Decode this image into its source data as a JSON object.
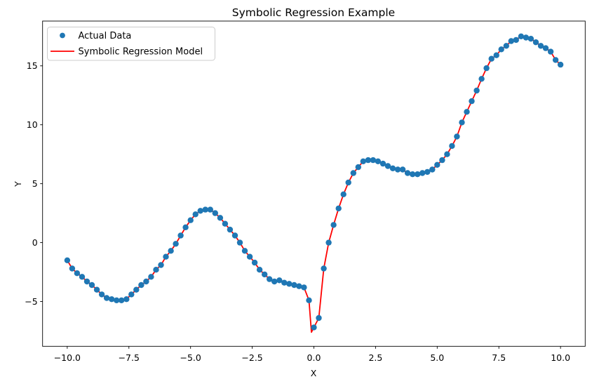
{
  "figure": {
    "title": "Symbolic Regression Example",
    "xlabel": "X",
    "ylabel": "Y",
    "background": "#ffffff"
  },
  "colors": {
    "scatter": "#1f77b4",
    "model_line": "#ff0000",
    "spine": "#000000",
    "text": "#000000",
    "legend_border": "#cccccc"
  },
  "axes": {
    "xlim": [
      -11,
      11
    ],
    "ylim": [
      -8.8,
      18.8
    ],
    "xticks": [
      -10,
      -7.5,
      -5,
      -2.5,
      0,
      2.5,
      5,
      7.5,
      10
    ],
    "xtick_labels": [
      "−10.0",
      "−7.5",
      "−5.0",
      "−2.5",
      "0.0",
      "2.5",
      "5.0",
      "7.5",
      "10.0"
    ],
    "yticks": [
      -5,
      0,
      5,
      10,
      15
    ],
    "ytick_labels": [
      "−5",
      "0",
      "5",
      "10",
      "15"
    ],
    "grid": false
  },
  "legend": {
    "position": "upper left",
    "items": [
      {
        "label": "Actual Data",
        "handle": "dot",
        "color": "#1f77b4"
      },
      {
        "label": "Symbolic Regression Model",
        "handle": "line",
        "color": "#ff0000"
      }
    ]
  },
  "chart_data": {
    "type": "scatter",
    "title": "Symbolic Regression Example",
    "xlabel": "X",
    "ylabel": "Y",
    "xlim": [
      -11,
      11
    ],
    "ylim": [
      -8.8,
      18.8
    ],
    "grid": false,
    "legend_position": "upper left",
    "x": [
      -10,
      -9.8,
      -9.6,
      -9.4,
      -9.2,
      -9,
      -8.8,
      -8.6,
      -8.4,
      -8.2,
      -8,
      -7.8,
      -7.6,
      -7.4,
      -7.2,
      -7,
      -6.8,
      -6.6,
      -6.4,
      -6.2,
      -6,
      -5.8,
      -5.6,
      -5.4,
      -5.2,
      -5,
      -4.8,
      -4.6,
      -4.4,
      -4.2,
      -4,
      -3.8,
      -3.6,
      -3.4,
      -3.2,
      -3,
      -2.8,
      -2.6,
      -2.4,
      -2.2,
      -2,
      -1.8,
      -1.6,
      -1.4,
      -1.2,
      -1,
      -0.8,
      -0.6,
      -0.4,
      -0.2,
      0,
      0.2,
      0.4,
      0.6,
      0.8,
      1,
      1.2,
      1.4,
      1.6,
      1.8,
      2,
      2.2,
      2.4,
      2.6,
      2.8,
      3,
      3.2,
      3.4,
      3.6,
      3.8,
      4,
      4.2,
      4.4,
      4.6,
      4.8,
      5,
      5.2,
      5.4,
      5.6,
      5.8,
      6,
      6.2,
      6.4,
      6.6,
      6.8,
      7,
      7.2,
      7.4,
      7.6,
      7.8,
      8,
      8.2,
      8.4,
      8.6,
      8.8,
      9,
      9.2,
      9.4,
      9.6,
      9.8,
      10
    ],
    "series": [
      {
        "name": "Actual Data",
        "type": "scatter",
        "color": "#1f77b4",
        "y": [
          -1.5,
          -2.2,
          -2.6,
          -2.9,
          -3.3,
          -3.6,
          -4.0,
          -4.4,
          -4.7,
          -4.8,
          -4.9,
          -4.9,
          -4.8,
          -4.4,
          -4.0,
          -3.6,
          -3.3,
          -2.9,
          -2.3,
          -1.9,
          -1.2,
          -0.7,
          -0.1,
          0.6,
          1.3,
          1.9,
          2.4,
          2.7,
          2.8,
          2.8,
          2.5,
          2.1,
          1.6,
          1.1,
          0.6,
          0.0,
          -0.7,
          -1.2,
          -1.7,
          -2.3,
          -2.7,
          -3.1,
          -3.3,
          -3.2,
          -3.4,
          -3.5,
          -3.6,
          -3.7,
          -3.8,
          -4.9,
          -7.2,
          -6.4,
          -2.2,
          0.0,
          1.5,
          2.9,
          4.1,
          5.1,
          5.9,
          6.4,
          6.9,
          7.0,
          7.0,
          6.9,
          6.7,
          6.5,
          6.3,
          6.2,
          6.2,
          5.9,
          5.8,
          5.8,
          5.9,
          6.0,
          6.2,
          6.6,
          7.0,
          7.5,
          8.2,
          9.0,
          10.2,
          11.1,
          12.0,
          12.9,
          13.9,
          14.8,
          15.6,
          15.9,
          16.4,
          16.7,
          17.1,
          17.2,
          17.5,
          17.4,
          17.3,
          17.0,
          16.7,
          16.5,
          16.2,
          15.5,
          15.1
        ]
      },
      {
        "name": "Symbolic Regression Model",
        "type": "line",
        "color": "#ff0000",
        "follows_series": "Actual Data",
        "extra_vertices": [
          [
            -0.1,
            -7.6
          ]
        ]
      }
    ]
  }
}
